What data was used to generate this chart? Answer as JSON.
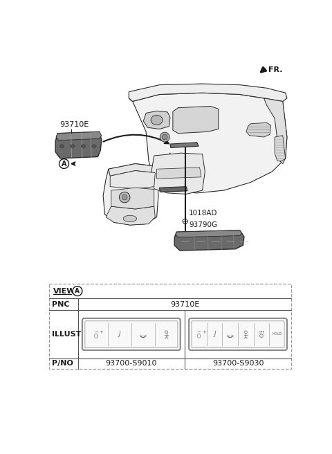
{
  "bg_color": "#ffffff",
  "fr_label": "FR.",
  "label_93710E": "93710E",
  "label_1018AD": "1018AD",
  "label_93790G": "93790G",
  "label_A": "A",
  "table": {
    "view_label": "VIEW",
    "circle_label": "A",
    "pnc_label": "PNC",
    "pnc_value": "93710E",
    "illust_label": "ILLUST",
    "pno_label": "P/NO",
    "pno_left": "93700-S9010",
    "pno_right": "93700-S9030"
  },
  "colors": {
    "black": "#1a1a1a",
    "dark_gray": "#555555",
    "mid_gray": "#888888",
    "light_gray": "#cccccc",
    "very_light": "#eeeeee",
    "outline": "#2a2a2a",
    "part_fill": "#787878",
    "part_fill2": "#6a6a6a",
    "table_dash": "#999999",
    "table_solid": "#555555"
  }
}
